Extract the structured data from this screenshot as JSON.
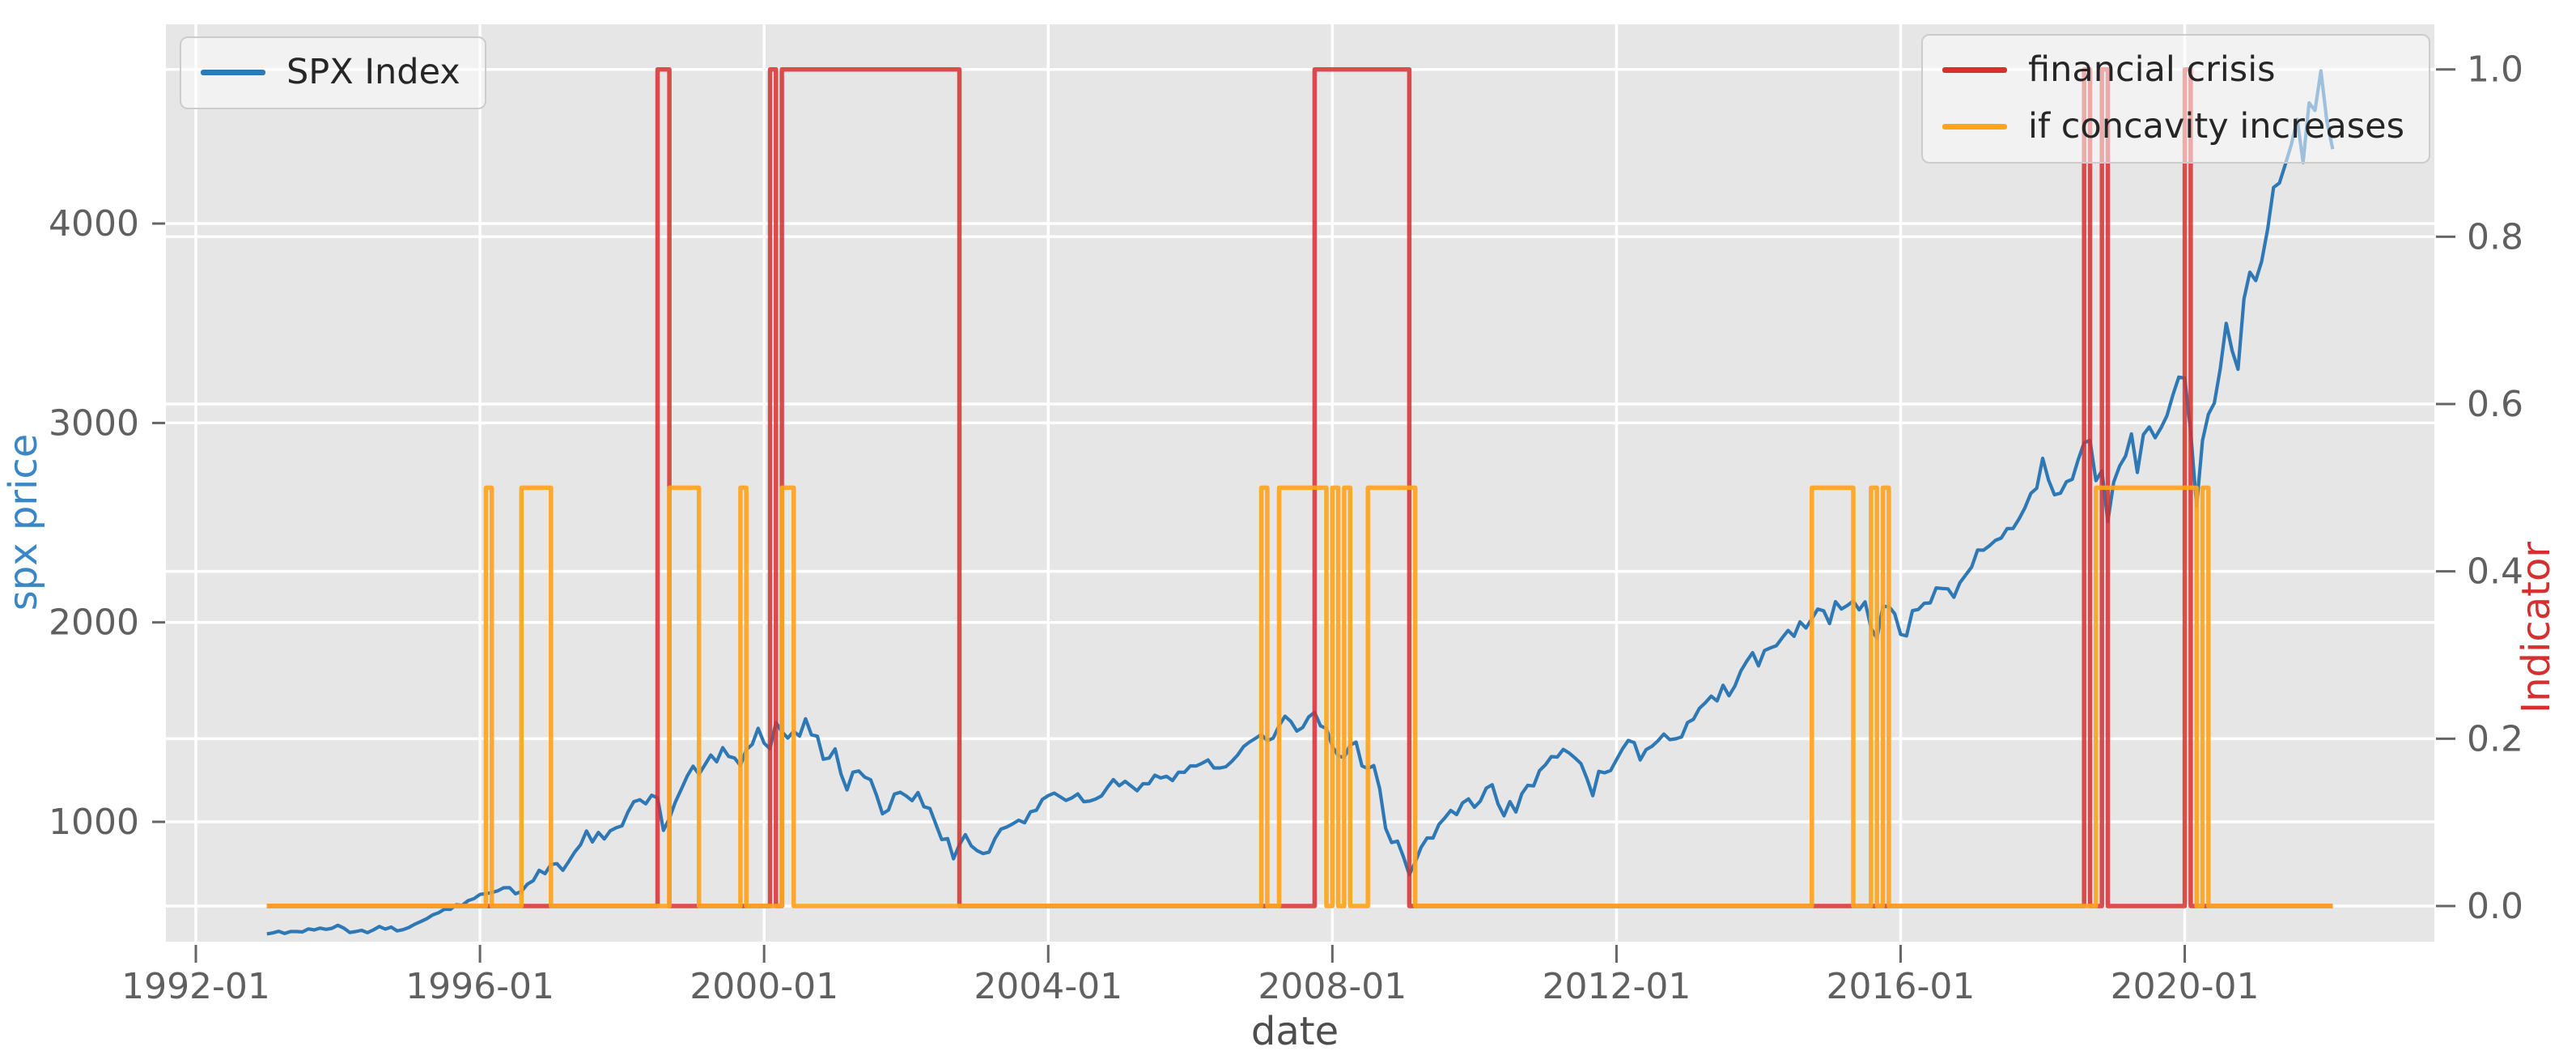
{
  "figure": {
    "background": "#ffffff",
    "plot_background": "#e6e6e6",
    "grid_color": "#ffffff",
    "tick_color": "#606060"
  },
  "chart_data": {
    "type": "line",
    "title": "",
    "xlabel": "date",
    "ylabel_left": "spx price",
    "ylabel_right": "Indicator",
    "ylabel_left_color": "#3b86c4",
    "ylabel_right_color": "#d3302f",
    "x_tick_labels": [
      "1992-01",
      "1996-01",
      "2000-01",
      "2004-01",
      "2008-01",
      "2012-01",
      "2016-01",
      "2020-01"
    ],
    "x_tick_years": [
      1992,
      1996,
      2000,
      2004,
      2008,
      2012,
      2016,
      2020
    ],
    "x_range_years": [
      1991.58,
      2023.52
    ],
    "y_left": {
      "tick_labels": [
        "1000",
        "2000",
        "3000",
        "4000"
      ],
      "tick_values": [
        1000,
        2000,
        3000,
        4000
      ],
      "range": [
        400,
        5000
      ]
    },
    "y_right": {
      "tick_labels": [
        "0.0",
        "0.2",
        "0.4",
        "0.6",
        "0.8",
        "1.0"
      ],
      "tick_values": [
        0,
        0.2,
        0.4,
        0.6,
        0.8,
        1.0
      ],
      "range": [
        -0.043,
        1.054
      ]
    },
    "grid": true,
    "legend_positions": [
      "upper left",
      "upper right"
    ],
    "series": [
      {
        "name": "SPX Index",
        "axis": "left",
        "color": "#2e79b5",
        "start": "1993-01",
        "freq": "monthly",
        "values": [
          438,
          443,
          451,
          440,
          450,
          450,
          448,
          463,
          458,
          467,
          461,
          466,
          481,
          467,
          445,
          450,
          456,
          444,
          458,
          475,
          462,
          472,
          453,
          459,
          470,
          487,
          500,
          514,
          533,
          544,
          562,
          561,
          584,
          581,
          605,
          615,
          636,
          640,
          645,
          654,
          669,
          670,
          639,
          651,
          687,
          705,
          757,
          740,
          786,
          790,
          757,
          801,
          848,
          885,
          954,
          899,
          947,
          914,
          955,
          970,
          980,
          1049,
          1101,
          1111,
          1090,
          1133,
          1120,
          957,
          1017,
          1098,
          1163,
          1229,
          1279,
          1238,
          1286,
          1335,
          1301,
          1372,
          1328,
          1320,
          1282,
          1362,
          1388,
          1469,
          1394,
          1366,
          1498,
          1452,
          1420,
          1454,
          1430,
          1517,
          1436,
          1429,
          1314,
          1320,
          1366,
          1239,
          1160,
          1249,
          1255,
          1224,
          1211,
          1133,
          1040,
          1059,
          1139,
          1148,
          1130,
          1106,
          1147,
          1076,
          1067,
          989,
          911,
          916,
          815,
          885,
          936,
          879,
          855,
          841,
          848,
          916,
          963,
          974,
          990,
          1008,
          995,
          1050,
          1058,
          1112,
          1131,
          1144,
          1126,
          1107,
          1120,
          1140,
          1101,
          1104,
          1114,
          1130,
          1173,
          1212,
          1181,
          1203,
          1180,
          1156,
          1191,
          1191,
          1234,
          1220,
          1228,
          1207,
          1249,
          1248,
          1280,
          1280,
          1294,
          1310,
          1270,
          1270,
          1276,
          1303,
          1335,
          1377,
          1400,
          1418,
          1438,
          1406,
          1420,
          1482,
          1530,
          1503,
          1455,
          1473,
          1526,
          1549,
          1481,
          1468,
          1378,
          1330,
          1322,
          1385,
          1400,
          1280,
          1267,
          1282,
          1166,
          968,
          896,
          903,
          825,
          735,
          797,
          872,
          919,
          919,
          987,
          1020,
          1057,
          1036,
          1095,
          1115,
          1073,
          1104,
          1169,
          1186,
          1089,
          1030,
          1101,
          1049,
          1141,
          1183,
          1180,
          1257,
          1286,
          1327,
          1325,
          1363,
          1345,
          1320,
          1292,
          1218,
          1131,
          1253,
          1246,
          1257,
          1312,
          1365,
          1408,
          1397,
          1310,
          1362,
          1379,
          1406,
          1440,
          1412,
          1416,
          1426,
          1498,
          1514,
          1569,
          1597,
          1630,
          1606,
          1685,
          1632,
          1681,
          1756,
          1805,
          1848,
          1782,
          1859,
          1872,
          1883,
          1923,
          1960,
          1930,
          2003,
          1972,
          2018,
          2067,
          2058,
          1994,
          2104,
          2067,
          2085,
          2107,
          2063,
          2103,
          1972,
          1920,
          2079,
          2080,
          2043,
          1940,
          1932,
          2059,
          2065,
          2096,
          2098,
          2173,
          2170,
          2168,
          2126,
          2198,
          2238,
          2278,
          2363,
          2362,
          2384,
          2411,
          2423,
          2470,
          2471,
          2519,
          2575,
          2647,
          2673,
          2823,
          2713,
          2640,
          2648,
          2705,
          2718,
          2816,
          2901,
          2913,
          2711,
          2760,
          2506,
          2704,
          2784,
          2834,
          2945,
          2752,
          2941,
          2980,
          2926,
          2976,
          3037,
          3140,
          3230,
          3225,
          2954,
          2584,
          2912,
          3044,
          3100,
          3271,
          3500,
          3363,
          3269,
          3621,
          3756,
          3714,
          3811,
          3972,
          4181,
          4204,
          4297,
          4395,
          4522,
          4307,
          4605,
          4567,
          4766,
          4515,
          4373
        ]
      },
      {
        "name": "financial crisis",
        "axis": "right",
        "color": "#d62f2f",
        "base": 0,
        "high": 1,
        "start": "1993-01",
        "end": "2022-02",
        "periods": [
          [
            "1998-07",
            "1998-09"
          ],
          [
            "2000-02",
            "2000-03"
          ],
          [
            "2000-04",
            "2002-10"
          ],
          [
            "2007-10",
            "2009-02"
          ],
          [
            "2018-08",
            "2018-09"
          ],
          [
            "2018-11",
            "2018-12"
          ],
          [
            "2020-01",
            "2020-02"
          ]
        ]
      },
      {
        "name": "if concavity increases",
        "axis": "right",
        "color": "#ffa41f",
        "base": 0,
        "high": 0.5,
        "start": "1993-01",
        "end": "2022-02",
        "periods": [
          [
            "1996-02",
            "1996-03"
          ],
          [
            "1996-08",
            "1997-01"
          ],
          [
            "1998-09",
            "1999-02"
          ],
          [
            "1999-09",
            "1999-10"
          ],
          [
            "2000-04",
            "2000-06"
          ],
          [
            "2007-01",
            "2007-02"
          ],
          [
            "2007-04",
            "2007-12"
          ],
          [
            "2008-01",
            "2008-02"
          ],
          [
            "2008-03",
            "2008-04"
          ],
          [
            "2008-07",
            "2009-03"
          ],
          [
            "2014-10",
            "2015-05"
          ],
          [
            "2015-08",
            "2015-09"
          ],
          [
            "2015-10",
            "2015-11"
          ],
          [
            "2018-10",
            "2020-03"
          ],
          [
            "2020-04",
            "2020-05"
          ]
        ]
      }
    ]
  }
}
